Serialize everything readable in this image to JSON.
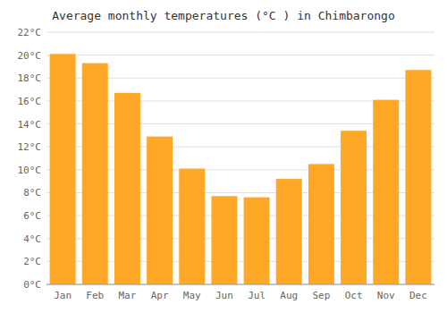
{
  "chart_data": {
    "type": "bar",
    "title": "Average monthly temperatures (°C ) in Chimbarongo",
    "categories": [
      "Jan",
      "Feb",
      "Mar",
      "Apr",
      "May",
      "Jun",
      "Jul",
      "Aug",
      "Sep",
      "Oct",
      "Nov",
      "Dec"
    ],
    "values": [
      20.1,
      19.3,
      16.7,
      12.9,
      10.1,
      7.7,
      7.6,
      9.2,
      10.5,
      13.4,
      16.1,
      18.7
    ],
    "color": "#FFA726",
    "ylim": [
      0,
      22
    ],
    "yticks": [
      {
        "value": 0,
        "label": "0°C"
      },
      {
        "value": 2,
        "label": "2°C"
      },
      {
        "value": 4,
        "label": "4°C"
      },
      {
        "value": 6,
        "label": "6°C"
      },
      {
        "value": 8,
        "label": "8°C"
      },
      {
        "value": 10,
        "label": "10°C"
      },
      {
        "value": 12,
        "label": "12°C"
      },
      {
        "value": 14,
        "label": "14°C"
      },
      {
        "value": 16,
        "label": "16°C"
      },
      {
        "value": 18,
        "label": "18°C"
      },
      {
        "value": 20,
        "label": "20°C"
      },
      {
        "value": 22,
        "label": "22°C"
      }
    ],
    "grid": true
  }
}
